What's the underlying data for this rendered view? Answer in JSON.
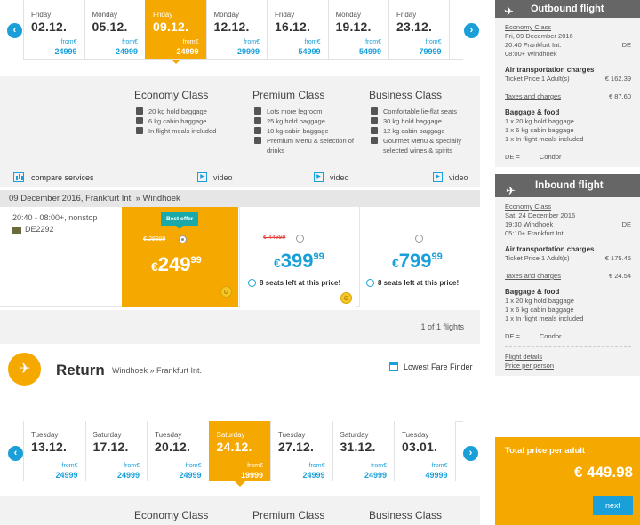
{
  "outbound": {
    "days": [
      {
        "dow": "Friday",
        "date": "02.12.",
        "from": "from€",
        "price": "24999",
        "selected": false
      },
      {
        "dow": "Monday",
        "date": "05.12.",
        "from": "from€",
        "price": "24999",
        "selected": false
      },
      {
        "dow": "Friday",
        "date": "09.12.",
        "from": "from€",
        "price": "24999",
        "selected": true
      },
      {
        "dow": "Monday",
        "date": "12.12.",
        "from": "from€",
        "price": "29999",
        "selected": false
      },
      {
        "dow": "Friday",
        "date": "16.12.",
        "from": "from€",
        "price": "54999",
        "selected": false
      },
      {
        "dow": "Monday",
        "date": "19.12.",
        "from": "from€",
        "price": "54999",
        "selected": false
      },
      {
        "dow": "Friday",
        "date": "23.12.",
        "from": "from€",
        "price": "79999",
        "selected": false
      }
    ],
    "prev_icon": "chevron-left-icon",
    "next_icon": "chevron-right-icon"
  },
  "classes": {
    "compare_label": "compare services",
    "video_label": "video",
    "economy": {
      "title": "Economy Class",
      "features": [
        "20 kg hold baggage",
        "6 kg cabin baggage",
        "In flight meals included"
      ]
    },
    "premium": {
      "title": "Premium Class",
      "features": [
        "Lots more legroom",
        "25 kg hold baggage",
        "10 kg cabin baggage",
        "Premium Menu & selection of drinks"
      ]
    },
    "business": {
      "title": "Business Class",
      "features": [
        "Comfortable lie-flat seats",
        "30 kg hold baggage",
        "12 kg cabin baggage",
        "Gourmet Menu & specially selected wines & spirits"
      ]
    }
  },
  "route_bar": "09 December 2016, Frankfurt Int. » Windhoek",
  "flight": {
    "times": "20:40 - 08:00+, nonstop",
    "number": "DE2292",
    "economy": {
      "badge": "Best offer",
      "old_price": "€ 29999",
      "currency": "€",
      "price": "249",
      "cents": "99"
    },
    "premium": {
      "old_price": "€ 44999",
      "currency": "€",
      "price": "399",
      "cents": "99",
      "seats": "8 seats left at this price!"
    },
    "business": {
      "currency": "€",
      "price": "799",
      "cents": "99",
      "seats": "8 seats left at this price!"
    }
  },
  "pager": "1 of 1 flights",
  "return": {
    "title": "Return",
    "route": "Windhoek » Frankfurt Int.",
    "lowest_fare_finder": "Lowest Fare Finder",
    "days": [
      {
        "dow": "Tuesday",
        "date": "13.12.",
        "from": "from€",
        "price": "24999",
        "selected": false
      },
      {
        "dow": "Saturday",
        "date": "17.12.",
        "from": "from€",
        "price": "24999",
        "selected": false
      },
      {
        "dow": "Tuesday",
        "date": "20.12.",
        "from": "from€",
        "price": "24999",
        "selected": false
      },
      {
        "dow": "Saturday",
        "date": "24.12.",
        "from": "from€",
        "price": "19999",
        "selected": true
      },
      {
        "dow": "Tuesday",
        "date": "27.12.",
        "from": "from€",
        "price": "24999",
        "selected": false
      },
      {
        "dow": "Saturday",
        "date": "31.12.",
        "from": "from€",
        "price": "24999",
        "selected": false
      },
      {
        "dow": "Tuesday",
        "date": "03.01.",
        "from": "from€",
        "price": "49999",
        "selected": false
      }
    ],
    "class_titles": [
      "Economy Class",
      "Premium Class",
      "Business Class"
    ]
  },
  "sidebar": {
    "outbound": {
      "title": "Outbound flight",
      "class": "Economy Class",
      "date": "Fri, 09 December 2016",
      "dep": "20:40 Frankfurt Int.",
      "dep_code": "DE",
      "arr": "08:00+ Windhoek",
      "charges_title": "Air transportation charges",
      "ticket_label": "Ticket Price 1 Adult(s)",
      "ticket_price": "€ 162.39",
      "taxes_label": "Taxes and charges",
      "taxes_price": "€ 87.60",
      "baggage_title": "Baggage & food",
      "baggage": [
        "1 x 20 kg hold baggage",
        "1 x 6 kg cabin baggage",
        "1 x In flight meals included"
      ],
      "carrier_code": "DE =",
      "carrier": "Condor"
    },
    "inbound": {
      "title": "Inbound flight",
      "class": "Economy Class",
      "date": "Sat, 24 December 2016",
      "dep": "19:30 Windhoek",
      "dep_code": "DE",
      "arr": "05:10+ Frankfurt Int.",
      "charges_title": "Air transportation charges",
      "ticket_label": "Ticket Price 1 Adult(s)",
      "ticket_price": "€ 175.45",
      "taxes_label": "Taxes and charges",
      "taxes_price": "€ 24.54",
      "baggage_title": "Baggage & food",
      "baggage": [
        "1 x 20 kg hold baggage",
        "1 x 6 kg cabin baggage",
        "1 x In flight meals included"
      ],
      "carrier_code": "DE =",
      "carrier": "Condor"
    },
    "details_link": "Flight details",
    "price_per_person": "Price per person",
    "total_label": "Total price per adult",
    "total_amount": "€ 449.98",
    "next_label": "next"
  },
  "colors": {
    "accent": "#f5a800",
    "link": "#1a9fd8",
    "teal": "#19a9a9"
  }
}
